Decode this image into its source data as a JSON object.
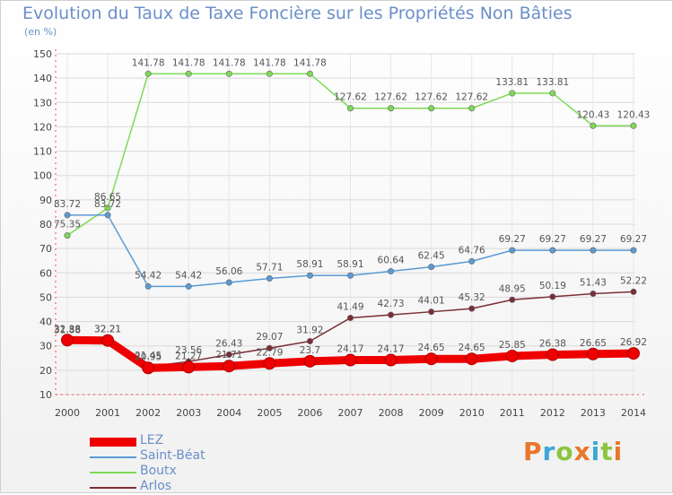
{
  "chart_data": {
    "type": "line",
    "title": "Evolution du Taux de Taxe Foncière sur les Propriétés Non Bâties",
    "ylabel": "(en %)",
    "xlabel": "",
    "ylim": [
      10,
      150
    ],
    "yticks": [
      10,
      20,
      30,
      40,
      50,
      60,
      70,
      80,
      90,
      100,
      110,
      120,
      130,
      140,
      150
    ],
    "x": [
      "2000",
      "2001",
      "2002",
      "2003",
      "2004",
      "2005",
      "2006",
      "2007",
      "2008",
      "2009",
      "2010",
      "2011",
      "2012",
      "2013",
      "2014"
    ],
    "series": [
      {
        "name": "LEZ",
        "color": "#ee0000",
        "values": [
          32.38,
          32.21,
          20.95,
          21.27,
          21.71,
          22.79,
          23.7,
          24.17,
          24.17,
          24.65,
          24.65,
          25.85,
          26.38,
          26.65,
          26.92
        ],
        "labels": [
          "32.38",
          "32.21",
          "20.95",
          "21.27",
          "21.71",
          "22.79",
          "23.7",
          "24.17",
          "24.17",
          "24.65",
          "24.65",
          "25.85",
          "26.38",
          "26.65",
          "26.92"
        ]
      },
      {
        "name": "Saint-Béat",
        "color": "#5b9bd5",
        "values": [
          83.72,
          83.72,
          54.42,
          54.42,
          56.06,
          57.71,
          58.91,
          58.91,
          60.64,
          62.45,
          64.76,
          69.27,
          69.27,
          69.27,
          69.27
        ],
        "labels": [
          "83.72",
          "83.72",
          "54.42",
          "54.42",
          "56.06",
          "57.71",
          "58.91",
          "58.91",
          "60.64",
          "62.45",
          "64.76",
          "69.27",
          "69.27",
          "69.27",
          "69.27"
        ]
      },
      {
        "name": "Boutx",
        "color": "#7ed957",
        "values": [
          75.35,
          86.65,
          141.78,
          141.78,
          141.78,
          141.78,
          141.78,
          127.62,
          127.62,
          127.62,
          127.62,
          133.81,
          133.81,
          120.43,
          120.43
        ],
        "labels": [
          "75.35",
          "86.65",
          "141.78",
          "141.78",
          "141.78",
          "141.78",
          "141.78",
          "127.62",
          "127.62",
          "127.62",
          "127.62",
          "133.81",
          "133.81",
          "120.43",
          "120.43"
        ]
      },
      {
        "name": "Arlos",
        "color": "#7a2e35",
        "values": [
          31.88,
          32.21,
          21.45,
          23.56,
          26.43,
          29.07,
          31.92,
          41.49,
          42.73,
          44.01,
          45.32,
          48.95,
          50.19,
          51.43,
          52.22
        ],
        "labels": [
          "31.88",
          "32.21",
          "21.45",
          "23.56",
          "26.43",
          "29.07",
          "31.92",
          "41.49",
          "42.73",
          "44.01",
          "45.32",
          "48.95",
          "50.19",
          "51.43",
          "52.22"
        ]
      }
    ],
    "legend_position": "bottom-left"
  },
  "logo": {
    "letters": [
      "P",
      "r",
      "o",
      "x",
      "i",
      "t",
      "i"
    ],
    "colors": [
      "#e8762c",
      "#3ea6d8",
      "#8cc63f",
      "#e8762c",
      "#3ea6d8",
      "#8cc63f",
      "#e8762c"
    ]
  }
}
